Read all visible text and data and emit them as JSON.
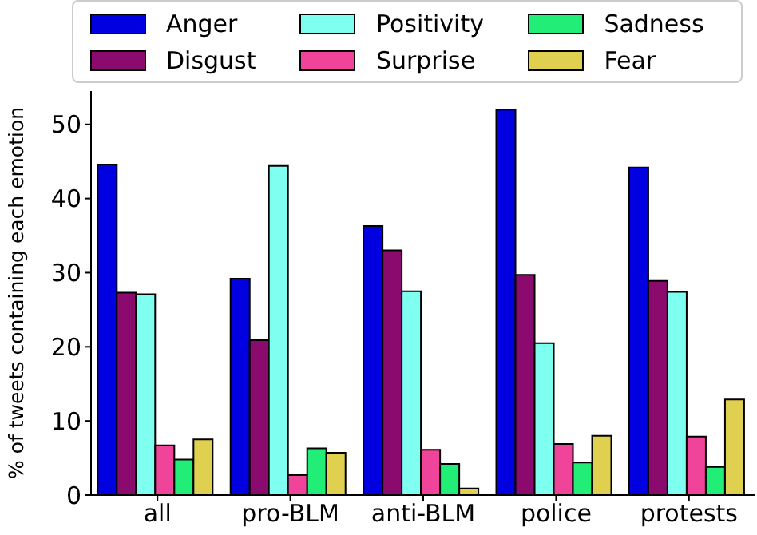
{
  "chart_data": {
    "type": "bar",
    "ylabel": "% of tweets containing each emotion",
    "categories": [
      "all",
      "pro-BLM",
      "anti-BLM",
      "police",
      "protests"
    ],
    "series": [
      {
        "name": "Anger",
        "color": "#0000e0",
        "values": [
          44.6,
          29.2,
          36.3,
          52.0,
          44.2
        ]
      },
      {
        "name": "Disgust",
        "color": "#8b0a6e",
        "values": [
          27.3,
          20.9,
          33.0,
          29.7,
          28.9
        ]
      },
      {
        "name": "Positivity",
        "color": "#7ffff0",
        "values": [
          27.1,
          44.4,
          27.5,
          20.5,
          27.4
        ]
      },
      {
        "name": "Surprise",
        "color": "#f0449a",
        "values": [
          6.7,
          2.7,
          6.1,
          6.9,
          7.9
        ]
      },
      {
        "name": "Sadness",
        "color": "#22ee77",
        "values": [
          4.8,
          6.3,
          4.2,
          4.4,
          3.8
        ]
      },
      {
        "name": "Fear",
        "color": "#e0d050",
        "values": [
          7.5,
          5.7,
          0.9,
          8.0,
          12.9
        ]
      }
    ],
    "ylim": [
      0,
      54.5
    ],
    "yticks": [
      0,
      10,
      20,
      30,
      40,
      50
    ],
    "grid": false,
    "legend": "top"
  }
}
